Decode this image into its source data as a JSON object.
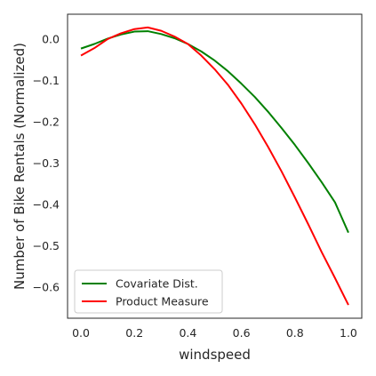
{
  "chart_data": {
    "type": "line",
    "xlabel": "windspeed",
    "ylabel": "Number of Bike Rentals (Normalized)",
    "xlim": [
      -0.05,
      1.05
    ],
    "ylim": [
      -0.675,
      0.06
    ],
    "xticks": [
      0.0,
      0.2,
      0.4,
      0.6,
      0.8,
      1.0
    ],
    "xtick_labels": [
      "0.0",
      "0.2",
      "0.4",
      "0.6",
      "0.8",
      "1.0"
    ],
    "yticks": [
      0.0,
      -0.1,
      -0.2,
      -0.3,
      -0.4,
      -0.5,
      -0.6
    ],
    "ytick_labels": [
      "0.0",
      "−0.1",
      "−0.2",
      "−0.3",
      "−0.4",
      "−0.5",
      "−0.6"
    ],
    "grid": false,
    "legend_position": "bottom-left",
    "x": [
      0.0,
      0.05,
      0.1,
      0.15,
      0.2,
      0.25,
      0.3,
      0.35,
      0.4,
      0.45,
      0.5,
      0.55,
      0.6,
      0.65,
      0.7,
      0.75,
      0.8,
      0.85,
      0.9,
      0.95,
      1.0
    ],
    "series": [
      {
        "name": "Covariate Dist.",
        "color": "#008000",
        "values": [
          -0.023,
          -0.012,
          0.001,
          0.011,
          0.018,
          0.019,
          0.012,
          0.002,
          -0.012,
          -0.03,
          -0.052,
          -0.078,
          -0.108,
          -0.14,
          -0.176,
          -0.215,
          -0.256,
          -0.3,
          -0.346,
          -0.395,
          -0.468
        ]
      },
      {
        "name": "Product Measure",
        "color": "#ff0000",
        "values": [
          -0.04,
          -0.022,
          0.0,
          0.014,
          0.024,
          0.028,
          0.02,
          0.006,
          -0.012,
          -0.04,
          -0.073,
          -0.111,
          -0.156,
          -0.206,
          -0.261,
          -0.32,
          -0.383,
          -0.448,
          -0.515,
          -0.578,
          -0.643
        ]
      }
    ]
  }
}
